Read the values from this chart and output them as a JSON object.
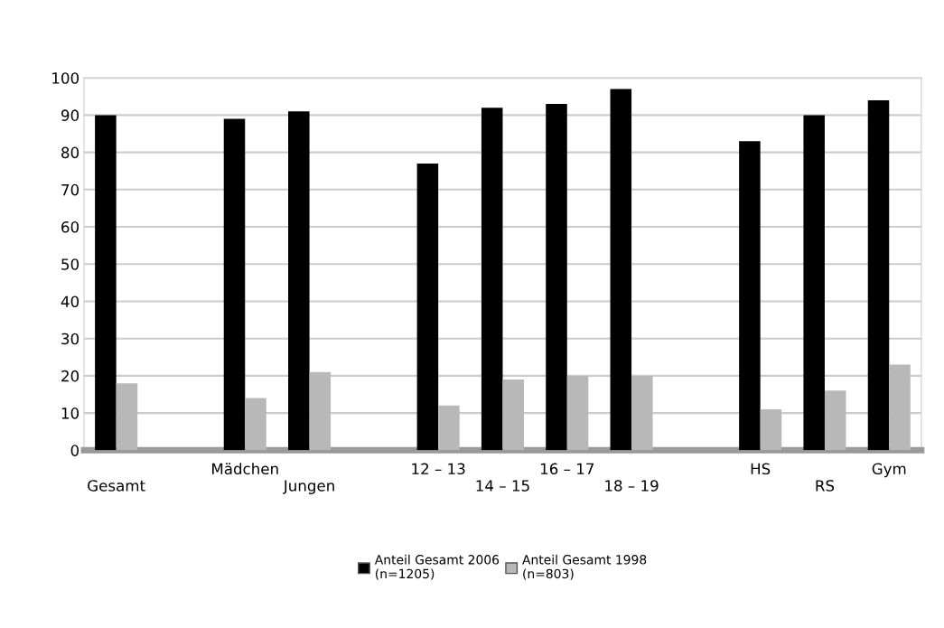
{
  "chart_data": {
    "type": "bar",
    "categories": [
      "Gesamt",
      null,
      "Mädchen",
      "Jungen",
      null,
      "12 – 13",
      "14 – 15",
      "16 – 17",
      "18 – 19",
      null,
      "HS",
      "RS",
      "Gym"
    ],
    "series": [
      {
        "name": "Anteil Gesamt 2006\n(n=1205)",
        "color": "#000000",
        "values": [
          90,
          null,
          89,
          91,
          null,
          77,
          92,
          93,
          97,
          null,
          83,
          90,
          94
        ]
      },
      {
        "name": "Anteil Gesamt 1998\n(n=803)",
        "color": "#b8b8b8",
        "values": [
          18,
          null,
          14,
          21,
          null,
          12,
          19,
          20,
          20,
          null,
          11,
          16,
          23
        ]
      }
    ],
    "ylim": [
      0,
      100
    ],
    "yticks": [
      0,
      10,
      20,
      30,
      40,
      50,
      60,
      70,
      80,
      90,
      100
    ],
    "grid": "y",
    "legend": "bottom"
  }
}
